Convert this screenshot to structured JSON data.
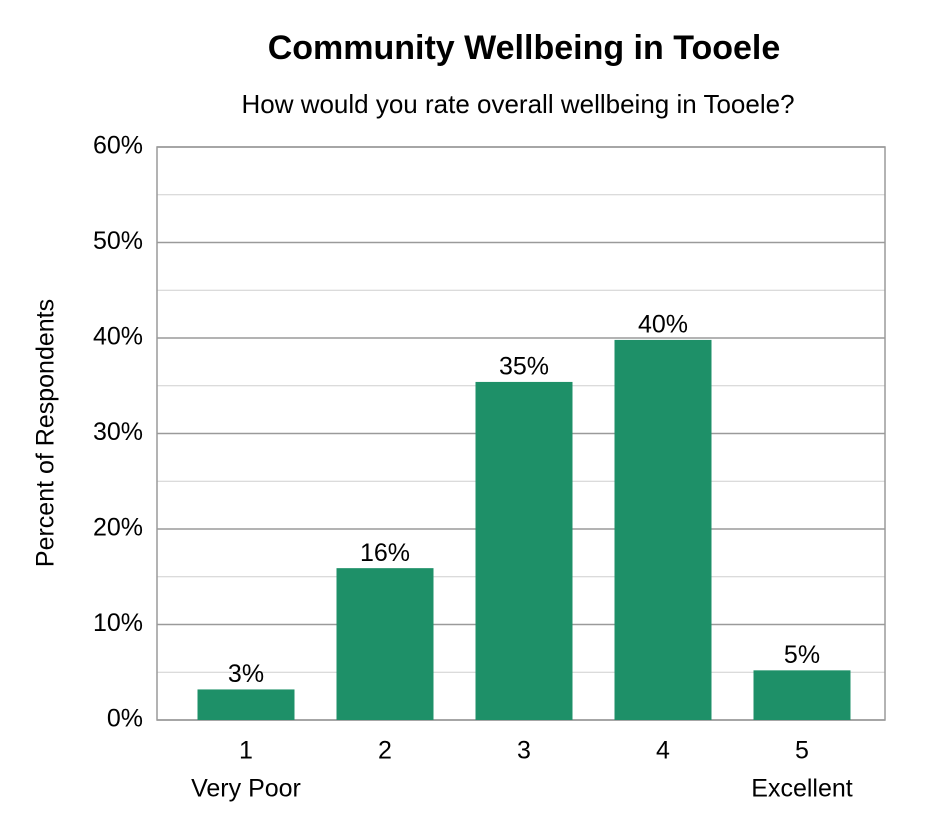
{
  "chart_data": {
    "type": "bar",
    "title": "Community Wellbeing in Tooele",
    "subtitle": "How would you rate overall wellbeing in Tooele?",
    "y_label": "Percent of Respondents",
    "categories": [
      "1",
      "2",
      "3",
      "4",
      "5"
    ],
    "category_sublabels": [
      "Very Poor",
      null,
      null,
      null,
      "Excellent"
    ],
    "values": [
      3.2,
      15.9,
      35.4,
      39.8,
      5.2
    ],
    "value_labels": [
      "3%",
      "16%",
      "35%",
      "40%",
      "5%"
    ],
    "color": "#1e9068",
    "ylim": [
      0,
      60
    ],
    "yticks": [
      {
        "value": 0,
        "label": "0%"
      },
      {
        "value": 10,
        "label": "10%"
      },
      {
        "value": 20,
        "label": "20%"
      },
      {
        "value": 30,
        "label": "30%"
      },
      {
        "value": 40,
        "label": "40%"
      },
      {
        "value": 50,
        "label": "50%"
      },
      {
        "value": 60,
        "label": "60%"
      }
    ],
    "minor_yticks": [
      5,
      15,
      25,
      35,
      45,
      55
    ],
    "grid": true
  }
}
